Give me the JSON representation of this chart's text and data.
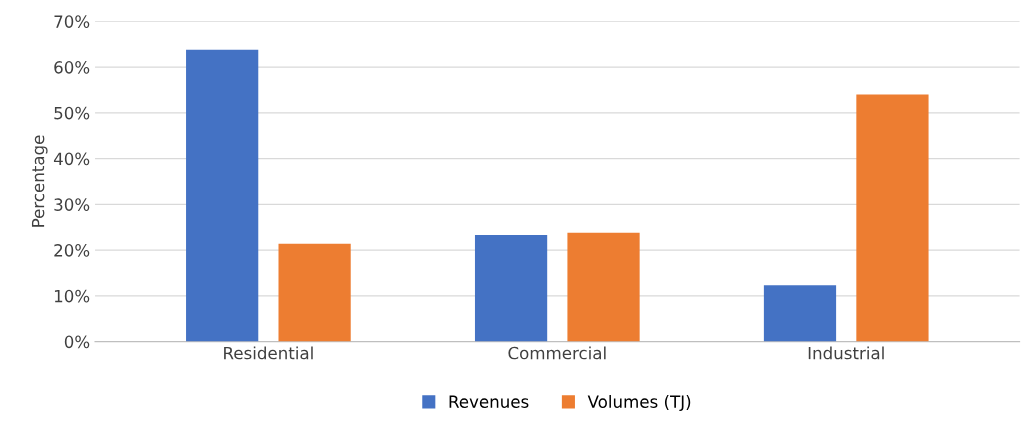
{
  "chart_data": {
    "type": "bar",
    "ylabel": "Percentage",
    "categories": [
      "Residential",
      "Commercial",
      "Industrial"
    ],
    "series": [
      {
        "name": "Revenues",
        "color": "#4472c4",
        "values": [
          63.8,
          23.3,
          12.3
        ]
      },
      {
        "name": "Volumes (TJ)",
        "color": "#ed7d31",
        "values": [
          21.4,
          23.8,
          54.0
        ]
      }
    ],
    "ylim": [
      0,
      70
    ],
    "yticks": [
      {
        "value": 0,
        "label": "0%"
      },
      {
        "value": 10,
        "label": "10%"
      },
      {
        "value": 20,
        "label": "20%"
      },
      {
        "value": 30,
        "label": "30%"
      },
      {
        "value": 40,
        "label": "40%"
      },
      {
        "value": 50,
        "label": "50%"
      },
      {
        "value": 60,
        "label": "60%"
      },
      {
        "value": 70,
        "label": "70%"
      }
    ],
    "grid": "y",
    "legend": "bottom"
  }
}
